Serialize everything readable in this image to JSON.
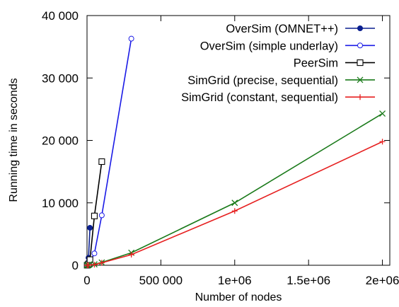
{
  "chart_data": {
    "type": "line",
    "xlabel": "Number of nodes",
    "ylabel": "Running time in seconds",
    "xlim": [
      0,
      2050000
    ],
    "ylim": [
      0,
      40000
    ],
    "x_ticks": [
      {
        "value": 0,
        "label": "0"
      },
      {
        "value": 500000,
        "label": "500 000"
      },
      {
        "value": 1000000,
        "label": "1e+06"
      },
      {
        "value": 1500000,
        "label": "1.5e+06"
      },
      {
        "value": 2000000,
        "label": "2e+06"
      }
    ],
    "y_ticks": [
      {
        "value": 0,
        "label": "0"
      },
      {
        "value": 10000,
        "label": "10 000"
      },
      {
        "value": 20000,
        "label": "20 000"
      },
      {
        "value": 30000,
        "label": "30 000"
      },
      {
        "value": 40000,
        "label": "40 000"
      }
    ],
    "legend_position": "top-right",
    "grid": false,
    "series": [
      {
        "name": "OverSim (OMNET++)",
        "color": "#0a1f8f",
        "marker": "filled-circle",
        "points": [
          [
            100,
            10
          ],
          [
            1000,
            60
          ],
          [
            5000,
            400
          ],
          [
            10000,
            1200
          ],
          [
            20000,
            6000
          ]
        ]
      },
      {
        "name": "OverSim (simple underlay)",
        "color": "#1a1ae6",
        "marker": "open-circle",
        "points": [
          [
            1000,
            5
          ],
          [
            10000,
            80
          ],
          [
            50000,
            1900
          ],
          [
            100000,
            8000
          ],
          [
            300000,
            36300
          ]
        ]
      },
      {
        "name": "PeerSim",
        "color": "#000000",
        "marker": "open-square",
        "points": [
          [
            1000,
            10
          ],
          [
            10000,
            200
          ],
          [
            20000,
            900
          ],
          [
            50000,
            7900
          ],
          [
            100000,
            16600
          ]
        ]
      },
      {
        "name": "SimGrid (precise, sequential)",
        "color": "#1a7a1a",
        "marker": "x",
        "points": [
          [
            1000,
            5
          ],
          [
            10000,
            20
          ],
          [
            50000,
            150
          ],
          [
            100000,
            450
          ],
          [
            300000,
            2000
          ],
          [
            1000000,
            10000
          ],
          [
            2000000,
            24300
          ]
        ]
      },
      {
        "name": "SimGrid (constant, sequential)",
        "color": "#e62020",
        "marker": "plus",
        "points": [
          [
            1000,
            5
          ],
          [
            10000,
            15
          ],
          [
            50000,
            100
          ],
          [
            100000,
            400
          ],
          [
            300000,
            1700
          ],
          [
            1000000,
            8700
          ],
          [
            2000000,
            19800
          ]
        ]
      }
    ]
  }
}
